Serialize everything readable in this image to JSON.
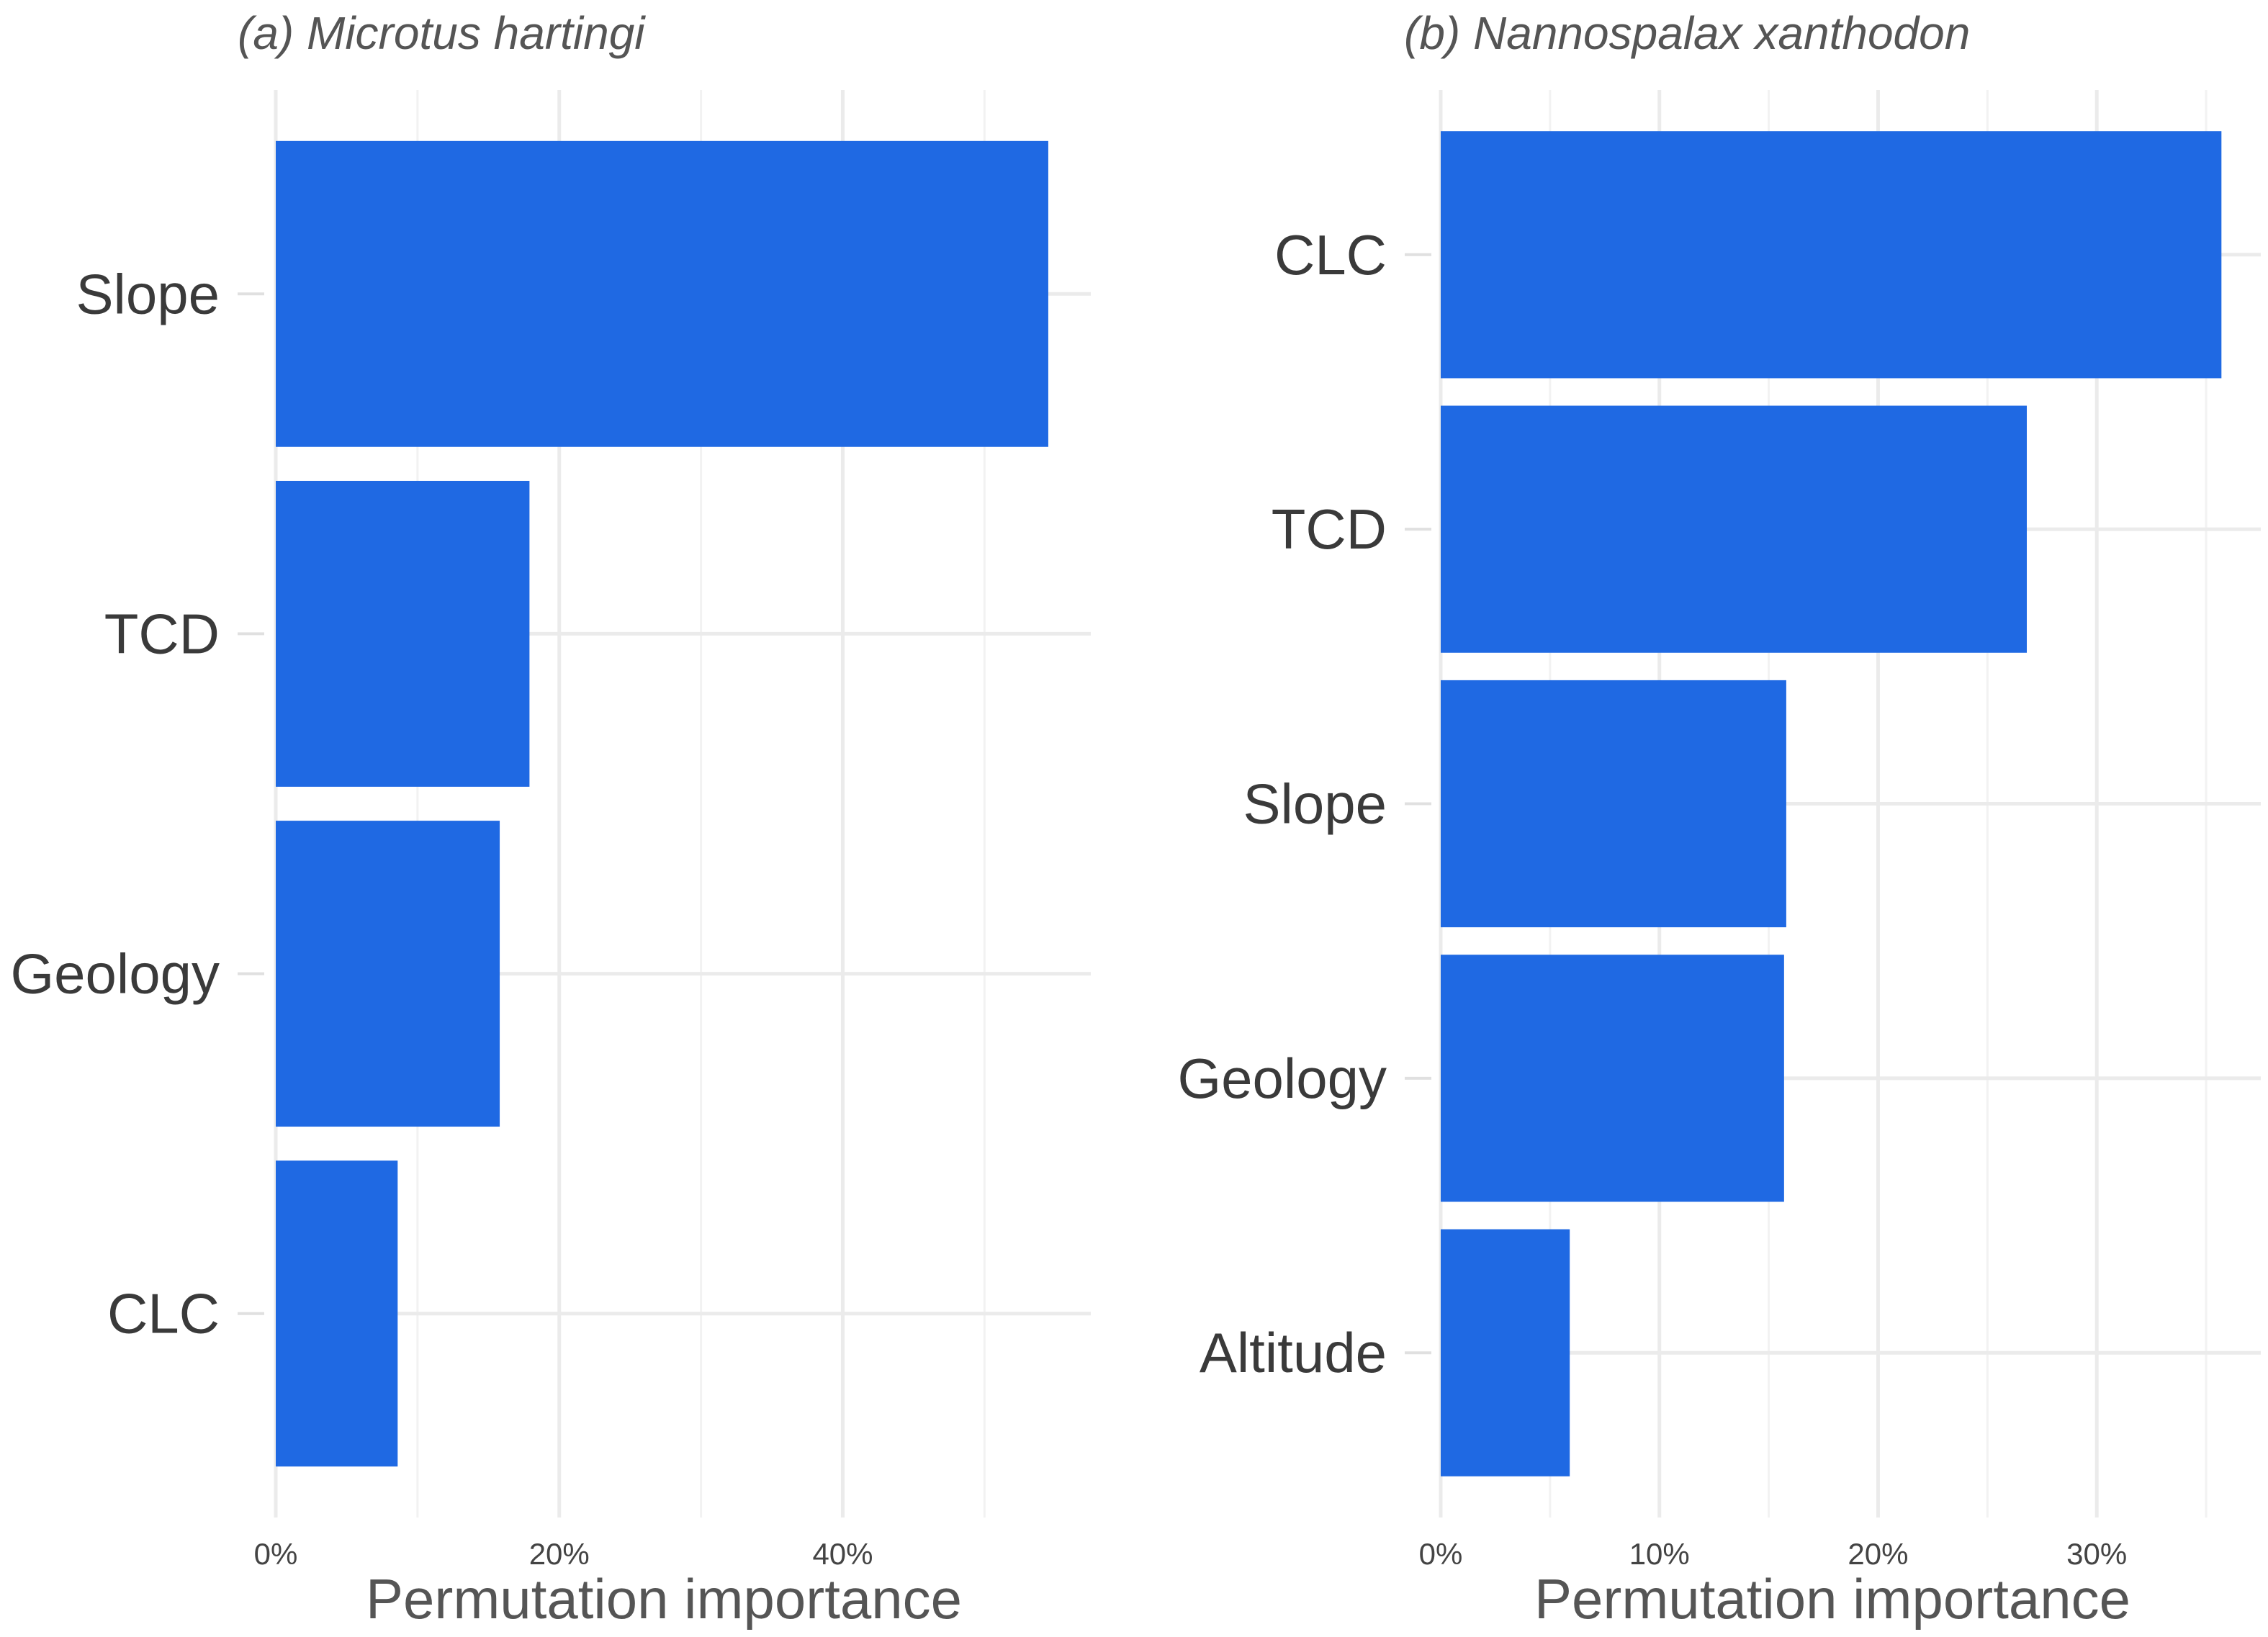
{
  "bar_color": "#1f69e3",
  "chart_data": [
    {
      "type": "bar",
      "orientation": "horizontal",
      "title": "(a) Microtus hartingi",
      "xlabel": "Permutation importance",
      "ylabel": "",
      "categories": [
        "Slope",
        "TCD",
        "Geology",
        "CLC"
      ],
      "values": [
        54.5,
        17.9,
        15.8,
        8.6
      ],
      "xlim": [
        0,
        57.5
      ],
      "major_ticks": [
        0,
        20,
        40
      ],
      "minor_ticks": [
        10,
        30,
        50
      ],
      "tick_labels": [
        "0%",
        "20%",
        "40%"
      ],
      "grid": true
    },
    {
      "type": "bar",
      "orientation": "horizontal",
      "title": "(b) Nannospalax xanthodon",
      "xlabel": "Permutation importance",
      "ylabel": "",
      "categories": [
        "CLC",
        "TCD",
        "Slope",
        "Geology",
        "Altitude"
      ],
      "values": [
        35.7,
        26.8,
        15.8,
        15.7,
        5.9
      ],
      "xlim": [
        0,
        37.5
      ],
      "major_ticks": [
        0,
        10,
        20,
        30
      ],
      "minor_ticks": [
        5,
        15,
        25,
        35
      ],
      "tick_labels": [
        "0%",
        "10%",
        "20%",
        "30%"
      ],
      "grid": true
    }
  ]
}
